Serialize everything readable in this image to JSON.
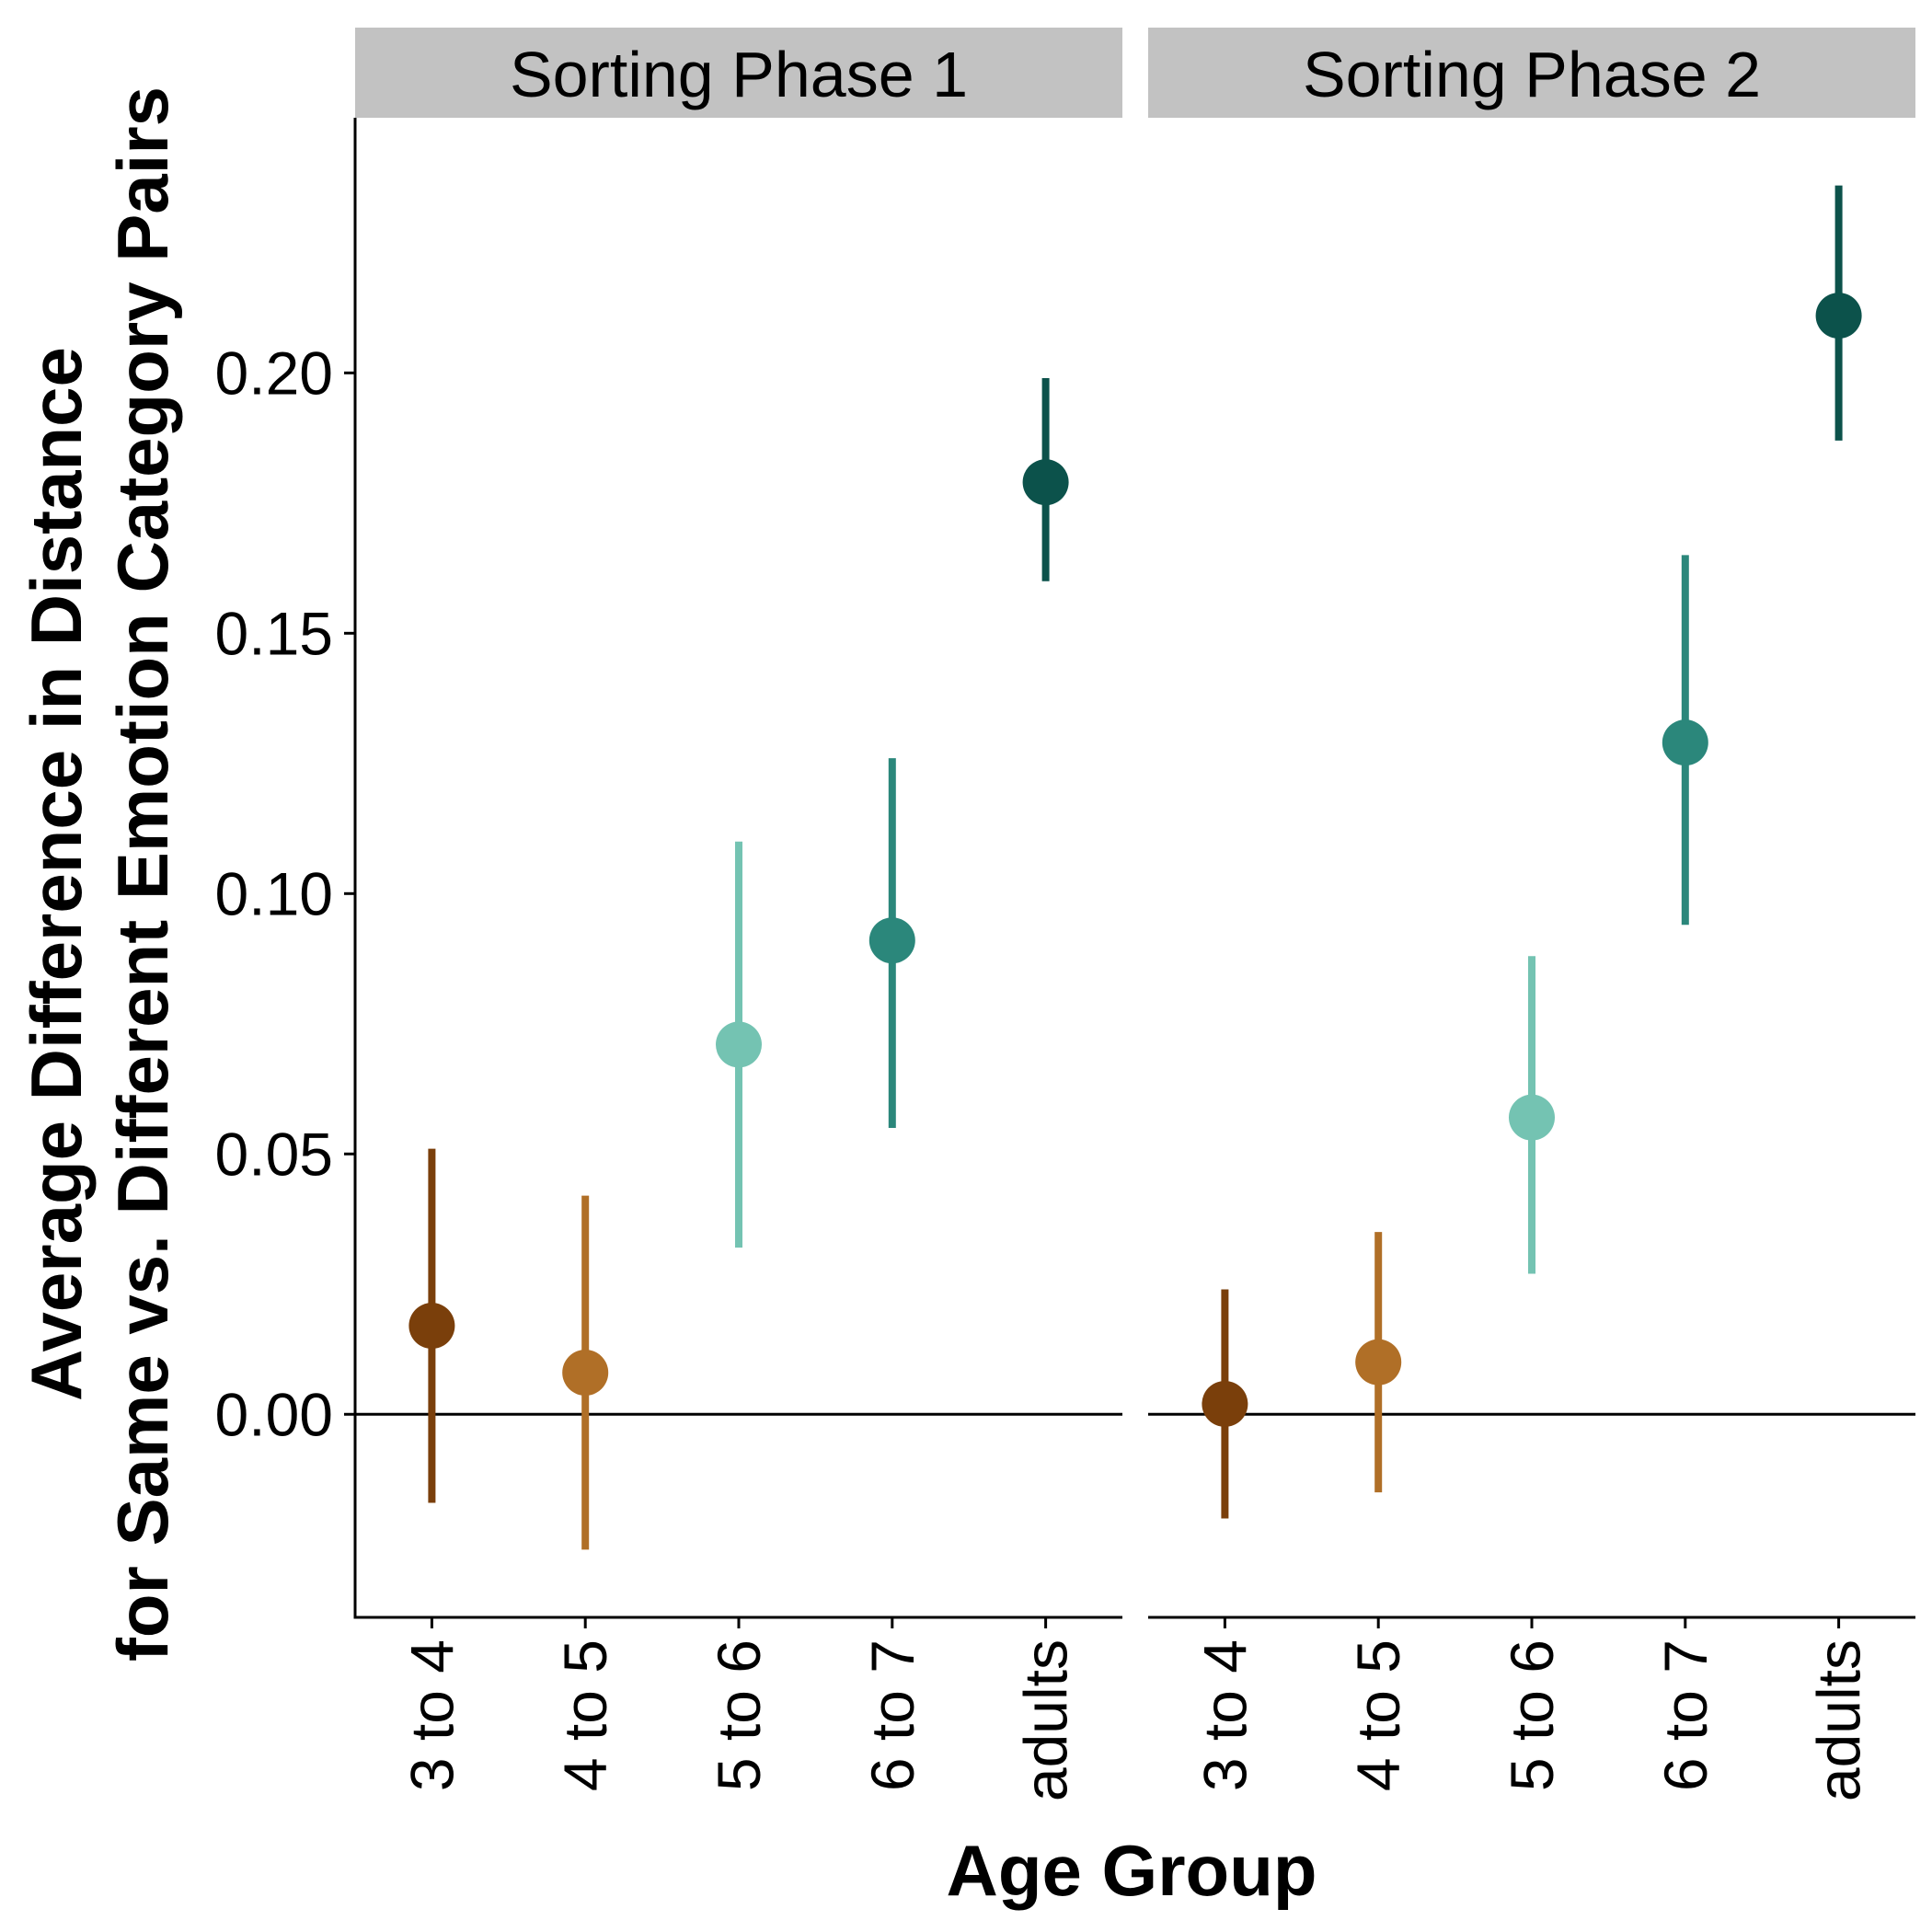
{
  "chart_data": {
    "type": "pointrange",
    "ylabel_line1": "Average Difference in Distance",
    "ylabel_line2": "for Same vs. Different Emotion Category Pairs",
    "xlabel": "Age Group",
    "ylim": [
      -0.039,
      0.249
    ],
    "yticks": [
      0.0,
      0.05,
      0.1,
      0.15,
      0.2
    ],
    "ytick_labels": [
      "0.00",
      "0.05",
      "0.10",
      "0.15",
      "0.20"
    ],
    "reference_line": 0,
    "categories": [
      "3 to 4",
      "4 to 5",
      "5 to 6",
      "6 to 7",
      "adults"
    ],
    "colors": [
      "#7a3f0b",
      "#b06f27",
      "#74c3b2",
      "#2b877b",
      "#0c524b"
    ],
    "panels": [
      {
        "title": "Sorting Phase 1",
        "points": [
          {
            "group": "3 to 4",
            "mean": 0.017,
            "lower": -0.017,
            "upper": 0.051
          },
          {
            "group": "4 to 5",
            "mean": 0.008,
            "lower": -0.026,
            "upper": 0.042
          },
          {
            "group": "5 to 6",
            "mean": 0.071,
            "lower": 0.032,
            "upper": 0.11
          },
          {
            "group": "6 to 7",
            "mean": 0.091,
            "lower": 0.055,
            "upper": 0.126
          },
          {
            "group": "adults",
            "mean": 0.179,
            "lower": 0.16,
            "upper": 0.199
          }
        ]
      },
      {
        "title": "Sorting Phase 2",
        "points": [
          {
            "group": "3 to 4",
            "mean": 0.002,
            "lower": -0.02,
            "upper": 0.024
          },
          {
            "group": "4 to 5",
            "mean": 0.01,
            "lower": -0.015,
            "upper": 0.035
          },
          {
            "group": "5 to 6",
            "mean": 0.057,
            "lower": 0.027,
            "upper": 0.088
          },
          {
            "group": "6 to 7",
            "mean": 0.129,
            "lower": 0.094,
            "upper": 0.165
          },
          {
            "group": "adults",
            "mean": 0.211,
            "lower": 0.187,
            "upper": 0.236
          }
        ]
      }
    ]
  }
}
